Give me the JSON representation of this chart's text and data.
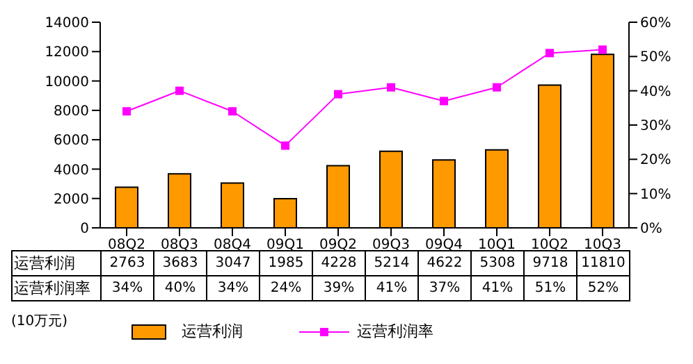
{
  "chart_data": {
    "type": "bar",
    "categories": [
      "08Q2",
      "08Q3",
      "08Q4",
      "09Q1",
      "09Q2",
      "09Q3",
      "09Q4",
      "10Q1",
      "10Q2",
      "10Q3"
    ],
    "series": [
      {
        "name": "运营利润",
        "color": "#ff9900",
        "values": [
          2763,
          3683,
          3047,
          1985,
          4228,
          5214,
          4622,
          5308,
          9718,
          11810
        ],
        "value_labels": [
          "2763",
          "3683",
          "3047",
          "1985",
          "4228",
          "5214",
          "4622",
          "5308",
          "9718",
          "11810"
        ]
      },
      {
        "name": "运营利润率",
        "type": "line",
        "axis": "y2",
        "color": "#ff00ff",
        "values": [
          34,
          40,
          34,
          24,
          39,
          41,
          37,
          41,
          51,
          52
        ],
        "value_labels": [
          "34%",
          "40%",
          "34%",
          "24%",
          "39%",
          "41%",
          "37%",
          "41%",
          "51%",
          "52%"
        ]
      }
    ],
    "ylim": [
      0,
      14000
    ],
    "yticks": [
      0,
      2000,
      4000,
      6000,
      8000,
      10000,
      12000,
      14000
    ],
    "y2lim": [
      0,
      60
    ],
    "y2ticks": [
      {
        "value": 0,
        "label": "0%"
      },
      {
        "value": 10,
        "label": "10%"
      },
      {
        "value": 20,
        "label": "20%"
      },
      {
        "value": 30,
        "label": "30%"
      },
      {
        "value": 40,
        "label": "40%"
      },
      {
        "value": 50,
        "label": "50%"
      },
      {
        "value": 60,
        "label": "60%"
      }
    ],
    "marker": "square",
    "legend": "bottom",
    "annotations": [
      "(10万元)"
    ]
  }
}
